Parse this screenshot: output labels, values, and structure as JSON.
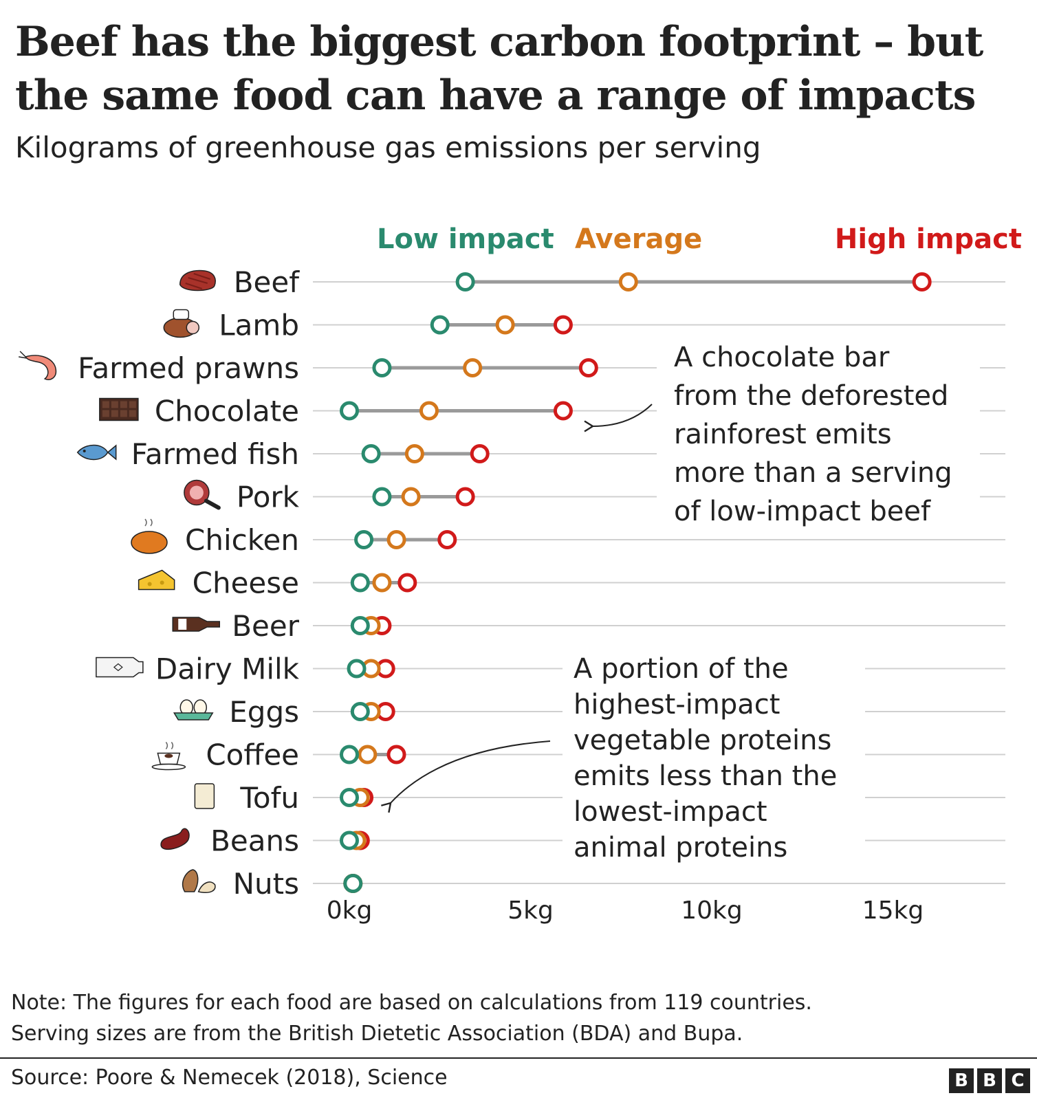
{
  "title_lines": [
    "Beef has the biggest carbon footprint – but",
    "the same food can have a range of impacts"
  ],
  "subtitle": "Kilograms of greenhouse gas emissions per serving",
  "legend": {
    "low": "Low impact",
    "average": "Average",
    "high": "High impact"
  },
  "colors": {
    "low": "#2a8a6e",
    "average": "#d4781c",
    "high": "#d11a1a",
    "range_bar": "#9a9a9a",
    "gridline": "#d0d0d0"
  },
  "annotations": {
    "chocolate": [
      "A chocolate bar",
      "from the deforested",
      "rainforest emits",
      "more than a serving",
      "of low-impact beef"
    ],
    "vegetable": [
      "A portion of the",
      "highest-impact",
      "vegetable proteins",
      "emits less than the",
      "lowest-impact",
      "animal proteins"
    ]
  },
  "note_lines": [
    "Note: The figures for each food are based on calculations from 119 countries.",
    "Serving sizes are from the British Dietetic Association (BDA) and Bupa."
  ],
  "source": "Source: Poore & Nemecek (2018), Science",
  "logo_letters": [
    "B",
    "B",
    "C"
  ],
  "chart_data": {
    "type": "dumbbell",
    "xlim": [
      0,
      17.5
    ],
    "x_ticks": [
      0,
      5,
      10,
      15
    ],
    "x_tick_labels": [
      "0kg",
      "5kg",
      "10kg",
      "15kg"
    ],
    "grid": "horizontal",
    "categories": [
      {
        "label": "Beef",
        "icon": "steak-icon",
        "low": 3.2,
        "average": 7.7,
        "high": 15.8
      },
      {
        "label": "Lamb",
        "icon": "lamb-shank-icon",
        "low": 2.5,
        "average": 4.3,
        "high": 5.9
      },
      {
        "label": "Farmed prawns",
        "icon": "prawn-icon",
        "low": 0.9,
        "average": 3.4,
        "high": 6.6
      },
      {
        "label": "Chocolate",
        "icon": "chocolate-bar-icon",
        "low": 0.0,
        "average": 2.2,
        "high": 5.9
      },
      {
        "label": "Farmed fish",
        "icon": "fish-icon",
        "low": 0.6,
        "average": 1.8,
        "high": 3.6
      },
      {
        "label": "Pork",
        "icon": "ham-icon",
        "low": 0.9,
        "average": 1.7,
        "high": 3.2
      },
      {
        "label": "Chicken",
        "icon": "roast-chicken-icon",
        "low": 0.4,
        "average": 1.3,
        "high": 2.7
      },
      {
        "label": "Cheese",
        "icon": "cheese-icon",
        "low": 0.3,
        "average": 0.9,
        "high": 1.6
      },
      {
        "label": "Beer",
        "icon": "beer-bottle-icon",
        "low": 0.3,
        "average": 0.6,
        "high": 0.9
      },
      {
        "label": "Dairy Milk",
        "icon": "milk-bottle-icon",
        "low": 0.2,
        "average": 0.6,
        "high": 1.0
      },
      {
        "label": "Eggs",
        "icon": "eggs-icon",
        "low": 0.3,
        "average": 0.6,
        "high": 1.0
      },
      {
        "label": "Coffee",
        "icon": "coffee-cup-icon",
        "low": 0.0,
        "average": 0.5,
        "high": 1.3
      },
      {
        "label": "Tofu",
        "icon": "tofu-icon",
        "low": 0.0,
        "average": 0.3,
        "high": 0.4
      },
      {
        "label": "Beans",
        "icon": "bean-icon",
        "low": 0.0,
        "average": 0.2,
        "high": 0.3
      },
      {
        "label": "Nuts",
        "icon": "nuts-icon",
        "low": 0.1,
        "average": 0.1,
        "high": 0.1
      }
    ]
  }
}
